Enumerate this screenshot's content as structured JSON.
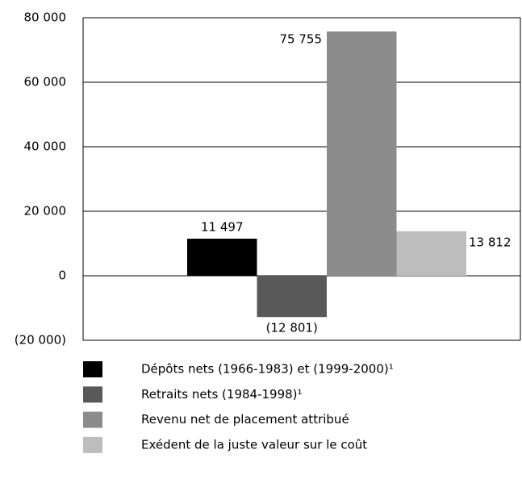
{
  "chart_data": {
    "type": "bar",
    "categories": [
      null
    ],
    "series": [
      {
        "name": "Dépôts nets (1966-1983) et (1999-2000)¹",
        "color": "#000000",
        "values": [
          11497
        ],
        "value_labels": [
          "11 497"
        ]
      },
      {
        "name": "Retraits nets (1984-1998)¹",
        "color": "#595959",
        "values": [
          -12801
        ],
        "value_labels": [
          "(12 801)"
        ]
      },
      {
        "name": "Revenu net de placement attribué",
        "color": "#8c8c8c",
        "values": [
          75755
        ],
        "value_labels": [
          "75 755"
        ]
      },
      {
        "name": "Exédent de la juste valeur sur le coût",
        "color": "#bdbdbd",
        "values": [
          13812
        ],
        "value_labels": [
          "13 812"
        ]
      }
    ],
    "ylim": [
      -20000,
      80000
    ],
    "yticks": [
      {
        "value": -20000,
        "label": "(20 000)"
      },
      0,
      {
        "value": 20000,
        "label": "20 000"
      },
      {
        "value": 40000,
        "label": "40 000"
      },
      {
        "value": 60000,
        "label": "60 000"
      },
      {
        "value": 80000,
        "label": "80 000"
      }
    ],
    "grid": true,
    "legend": "bottom"
  }
}
